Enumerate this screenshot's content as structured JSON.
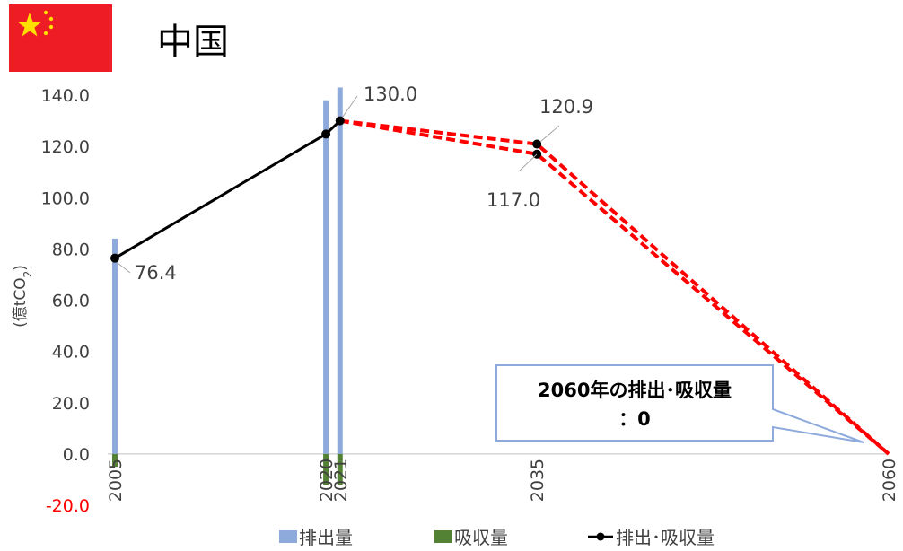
{
  "header": {
    "title": "中国"
  },
  "flag": {
    "icon": "china-flag-icon",
    "red": "#ee1c25",
    "yellow": "#ffde00"
  },
  "chart_data": {
    "type": "bar+line",
    "ylabel": "(億tCO",
    "ylabel_sub": "2",
    "ylabel_close": ")",
    "ylim": [
      -20,
      140
    ],
    "yticks": [
      {
        "v": 140,
        "label": "140.0"
      },
      {
        "v": 120,
        "label": "120.0"
      },
      {
        "v": 100,
        "label": "100.0"
      },
      {
        "v": 80,
        "label": "80.0"
      },
      {
        "v": 60,
        "label": "60.0"
      },
      {
        "v": 40,
        "label": "40.0"
      },
      {
        "v": 20,
        "label": "20.0"
      },
      {
        "v": 0,
        "label": "0.0"
      },
      {
        "v": -20,
        "label": "-20.0"
      }
    ],
    "xlim": [
      2005,
      2060
    ],
    "xticks": [
      "2005",
      "2020",
      "2021",
      "2035",
      "2060"
    ],
    "series": [
      {
        "name": "排出量",
        "kind": "bar",
        "color": "#8eaadc",
        "points": [
          {
            "x": 2005,
            "y": 84
          },
          {
            "x": 2020,
            "y": 138
          },
          {
            "x": 2021,
            "y": 143
          }
        ]
      },
      {
        "name": "吸収量",
        "kind": "bar",
        "color": "#548235",
        "points": [
          {
            "x": 2005,
            "y": -5
          },
          {
            "x": 2020,
            "y": -12
          },
          {
            "x": 2021,
            "y": -12
          }
        ]
      },
      {
        "name": "排出・吸収量",
        "kind": "line",
        "color": "#000000",
        "points": [
          {
            "x": 2005,
            "y": 76.4
          },
          {
            "x": 2020,
            "y": 124.8
          },
          {
            "x": 2021,
            "y": 130.0
          }
        ]
      }
    ],
    "targets": {
      "color": "#ff0000",
      "upper": [
        {
          "x": 2021,
          "y": 130.0
        },
        {
          "x": 2035,
          "y": 120.9
        },
        {
          "x": 2060,
          "y": 0
        }
      ],
      "lower": [
        {
          "x": 2021,
          "y": 130.0
        },
        {
          "x": 2035,
          "y": 117.0
        },
        {
          "x": 2060,
          "y": 0
        }
      ]
    },
    "data_labels": [
      {
        "text": "76.4"
      },
      {
        "text": "130.0"
      },
      {
        "text": "120.9"
      },
      {
        "text": "117.0"
      }
    ],
    "legend": [
      {
        "label": "排出量"
      },
      {
        "label": "吸収量"
      },
      {
        "label": "排出･吸収量"
      }
    ],
    "annotation": {
      "line1": "2060年の排出･吸収量",
      "line2": "：0"
    }
  }
}
